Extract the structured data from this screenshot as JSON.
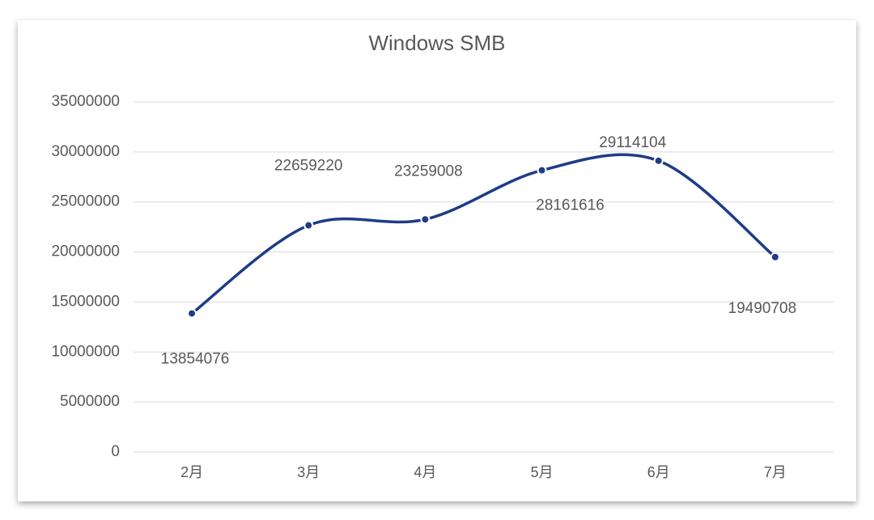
{
  "chart_data": {
    "type": "line",
    "title": "Windows SMB",
    "categories": [
      "2月",
      "3月",
      "4月",
      "5月",
      "6月",
      "7月"
    ],
    "series": [
      {
        "name": "Windows SMB",
        "color": "#1f3c88",
        "values": [
          13854076,
          22659220,
          23259008,
          28161616,
          29114104,
          19490708
        ]
      }
    ],
    "ylim": [
      0,
      35000000
    ],
    "yticks": [
      0,
      5000000,
      10000000,
      15000000,
      20000000,
      25000000,
      30000000,
      35000000
    ],
    "grid": true,
    "smooth": true
  }
}
